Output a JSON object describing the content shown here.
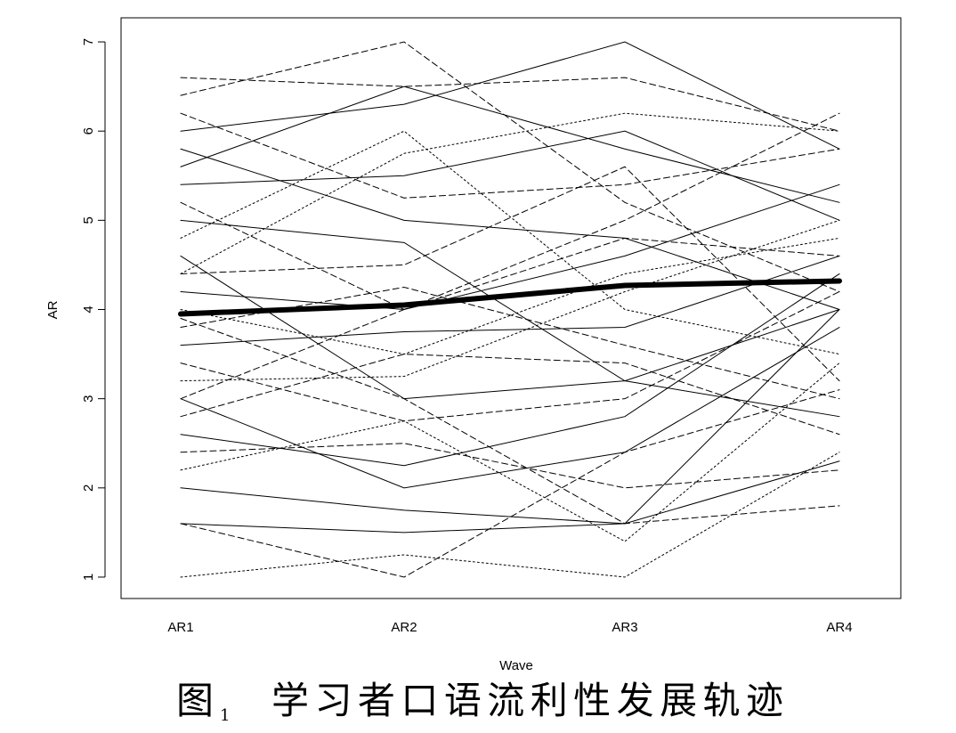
{
  "chart_data": {
    "type": "line",
    "x_label": "Wave",
    "y_label": "AR",
    "caption_prefix": "图",
    "caption_number": "1",
    "caption_text": "学习者口语流利性发展轨迹",
    "categories": [
      "AR1",
      "AR2",
      "AR3",
      "AR4"
    ],
    "ylim": [
      0.76,
      7.27
    ],
    "yticks": [
      1,
      2,
      3,
      4,
      5,
      6,
      7
    ],
    "grid": false,
    "series": [
      {
        "color": "#000000",
        "style": "dotted",
        "values": [
          1.0,
          1.25,
          1.0,
          2.4
        ]
      },
      {
        "color": "#000000",
        "style": "solid",
        "values": [
          1.6,
          1.5,
          1.6,
          4.0
        ]
      },
      {
        "color": "#000000",
        "style": "solid",
        "values": [
          2.0,
          1.75,
          1.6,
          2.3
        ]
      },
      {
        "color": "#000000",
        "style": "dashed",
        "values": [
          1.6,
          1.0,
          2.4,
          3.1
        ]
      },
      {
        "color": "#000000",
        "style": "dashed",
        "values": [
          6.6,
          6.5,
          6.6,
          6.0
        ]
      },
      {
        "color": "#000000",
        "style": "dashed",
        "values": [
          6.4,
          7.0,
          5.2,
          4.2
        ]
      },
      {
        "color": "#000000",
        "style": "solid",
        "values": [
          6.0,
          6.3,
          7.0,
          5.8
        ]
      },
      {
        "color": "#000000",
        "style": "solid",
        "values": [
          5.4,
          5.5,
          6.0,
          5.0
        ]
      },
      {
        "color": "#000000",
        "style": "dashed",
        "values": [
          5.2,
          4.0,
          5.0,
          6.2
        ]
      },
      {
        "color": "#000000",
        "style": "dotted",
        "values": [
          4.8,
          6.0,
          4.0,
          3.5
        ]
      },
      {
        "color": "#000000",
        "style": "solid",
        "values": [
          4.6,
          3.0,
          3.2,
          4.0
        ]
      },
      {
        "color": "#000000",
        "style": "dashed",
        "values": [
          4.4,
          4.5,
          5.6,
          3.2
        ]
      },
      {
        "color": "#000000",
        "style": "solid",
        "values": [
          4.2,
          4.0,
          4.6,
          5.4
        ]
      },
      {
        "color": "#000000",
        "style": "dotted",
        "values": [
          4.0,
          3.5,
          4.4,
          4.8
        ]
      },
      {
        "color": "#000000",
        "style": "dashed",
        "values": [
          3.8,
          4.25,
          3.6,
          3.0
        ]
      },
      {
        "color": "#000000",
        "style": "solid",
        "values": [
          3.6,
          3.75,
          3.8,
          4.6
        ]
      },
      {
        "color": "#000000",
        "style": "dashed",
        "values": [
          3.4,
          2.75,
          3.0,
          4.2
        ]
      },
      {
        "color": "#000000",
        "style": "dotted",
        "values": [
          3.2,
          3.25,
          4.2,
          5.0
        ]
      },
      {
        "color": "#000000",
        "style": "solid",
        "values": [
          3.0,
          2.0,
          2.4,
          3.8
        ]
      },
      {
        "color": "#000000",
        "style": "dashed",
        "values": [
          2.8,
          3.5,
          3.4,
          2.6
        ]
      },
      {
        "color": "#000000",
        "style": "solid",
        "values": [
          2.6,
          2.25,
          2.8,
          4.4
        ]
      },
      {
        "color": "#000000",
        "style": "dashed",
        "values": [
          2.4,
          2.5,
          2.0,
          2.2
        ]
      },
      {
        "color": "#000000",
        "style": "dotted",
        "values": [
          2.2,
          2.75,
          1.4,
          3.4
        ]
      },
      {
        "color": "#000000",
        "style": "solid",
        "values": [
          5.8,
          5.0,
          4.8,
          4.0
        ]
      },
      {
        "color": "#000000",
        "style": "dashed",
        "values": [
          6.2,
          5.25,
          5.4,
          5.8
        ]
      },
      {
        "color": "#000000",
        "style": "solid",
        "values": [
          5.0,
          4.75,
          3.2,
          2.8
        ]
      },
      {
        "color": "#000000",
        "style": "dotted",
        "values": [
          4.4,
          5.75,
          6.2,
          6.0
        ]
      },
      {
        "color": "#000000",
        "style": "dashed",
        "values": [
          3.9,
          3.0,
          1.6,
          1.8
        ]
      },
      {
        "color": "#000000",
        "style": "solid",
        "values": [
          5.6,
          6.5,
          5.8,
          5.2
        ]
      },
      {
        "color": "#000000",
        "style": "dashed",
        "values": [
          3.0,
          4.0,
          4.8,
          4.6
        ]
      },
      {
        "color": "#000000",
        "style": "bold",
        "values": [
          3.95,
          4.05,
          4.27,
          4.32
        ]
      }
    ]
  }
}
